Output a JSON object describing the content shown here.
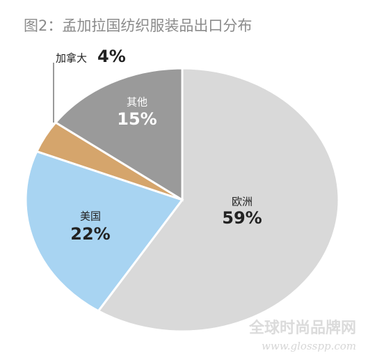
{
  "chart_data": {
    "type": "pie",
    "title": "图2：孟加拉国纺织服装品出口分布",
    "categories": [
      "欧洲",
      "美国",
      "加拿大",
      "其他"
    ],
    "values": [
      59,
      22,
      4,
      15
    ],
    "value_labels": [
      "59%",
      "22%",
      "4%",
      "15%"
    ],
    "colors": [
      "#d9d9d9",
      "#a8d4f2",
      "#d5a56c",
      "#9a9a9a"
    ],
    "watermark": [
      "全球时尚品牌网",
      "www.glosspp.com"
    ]
  }
}
